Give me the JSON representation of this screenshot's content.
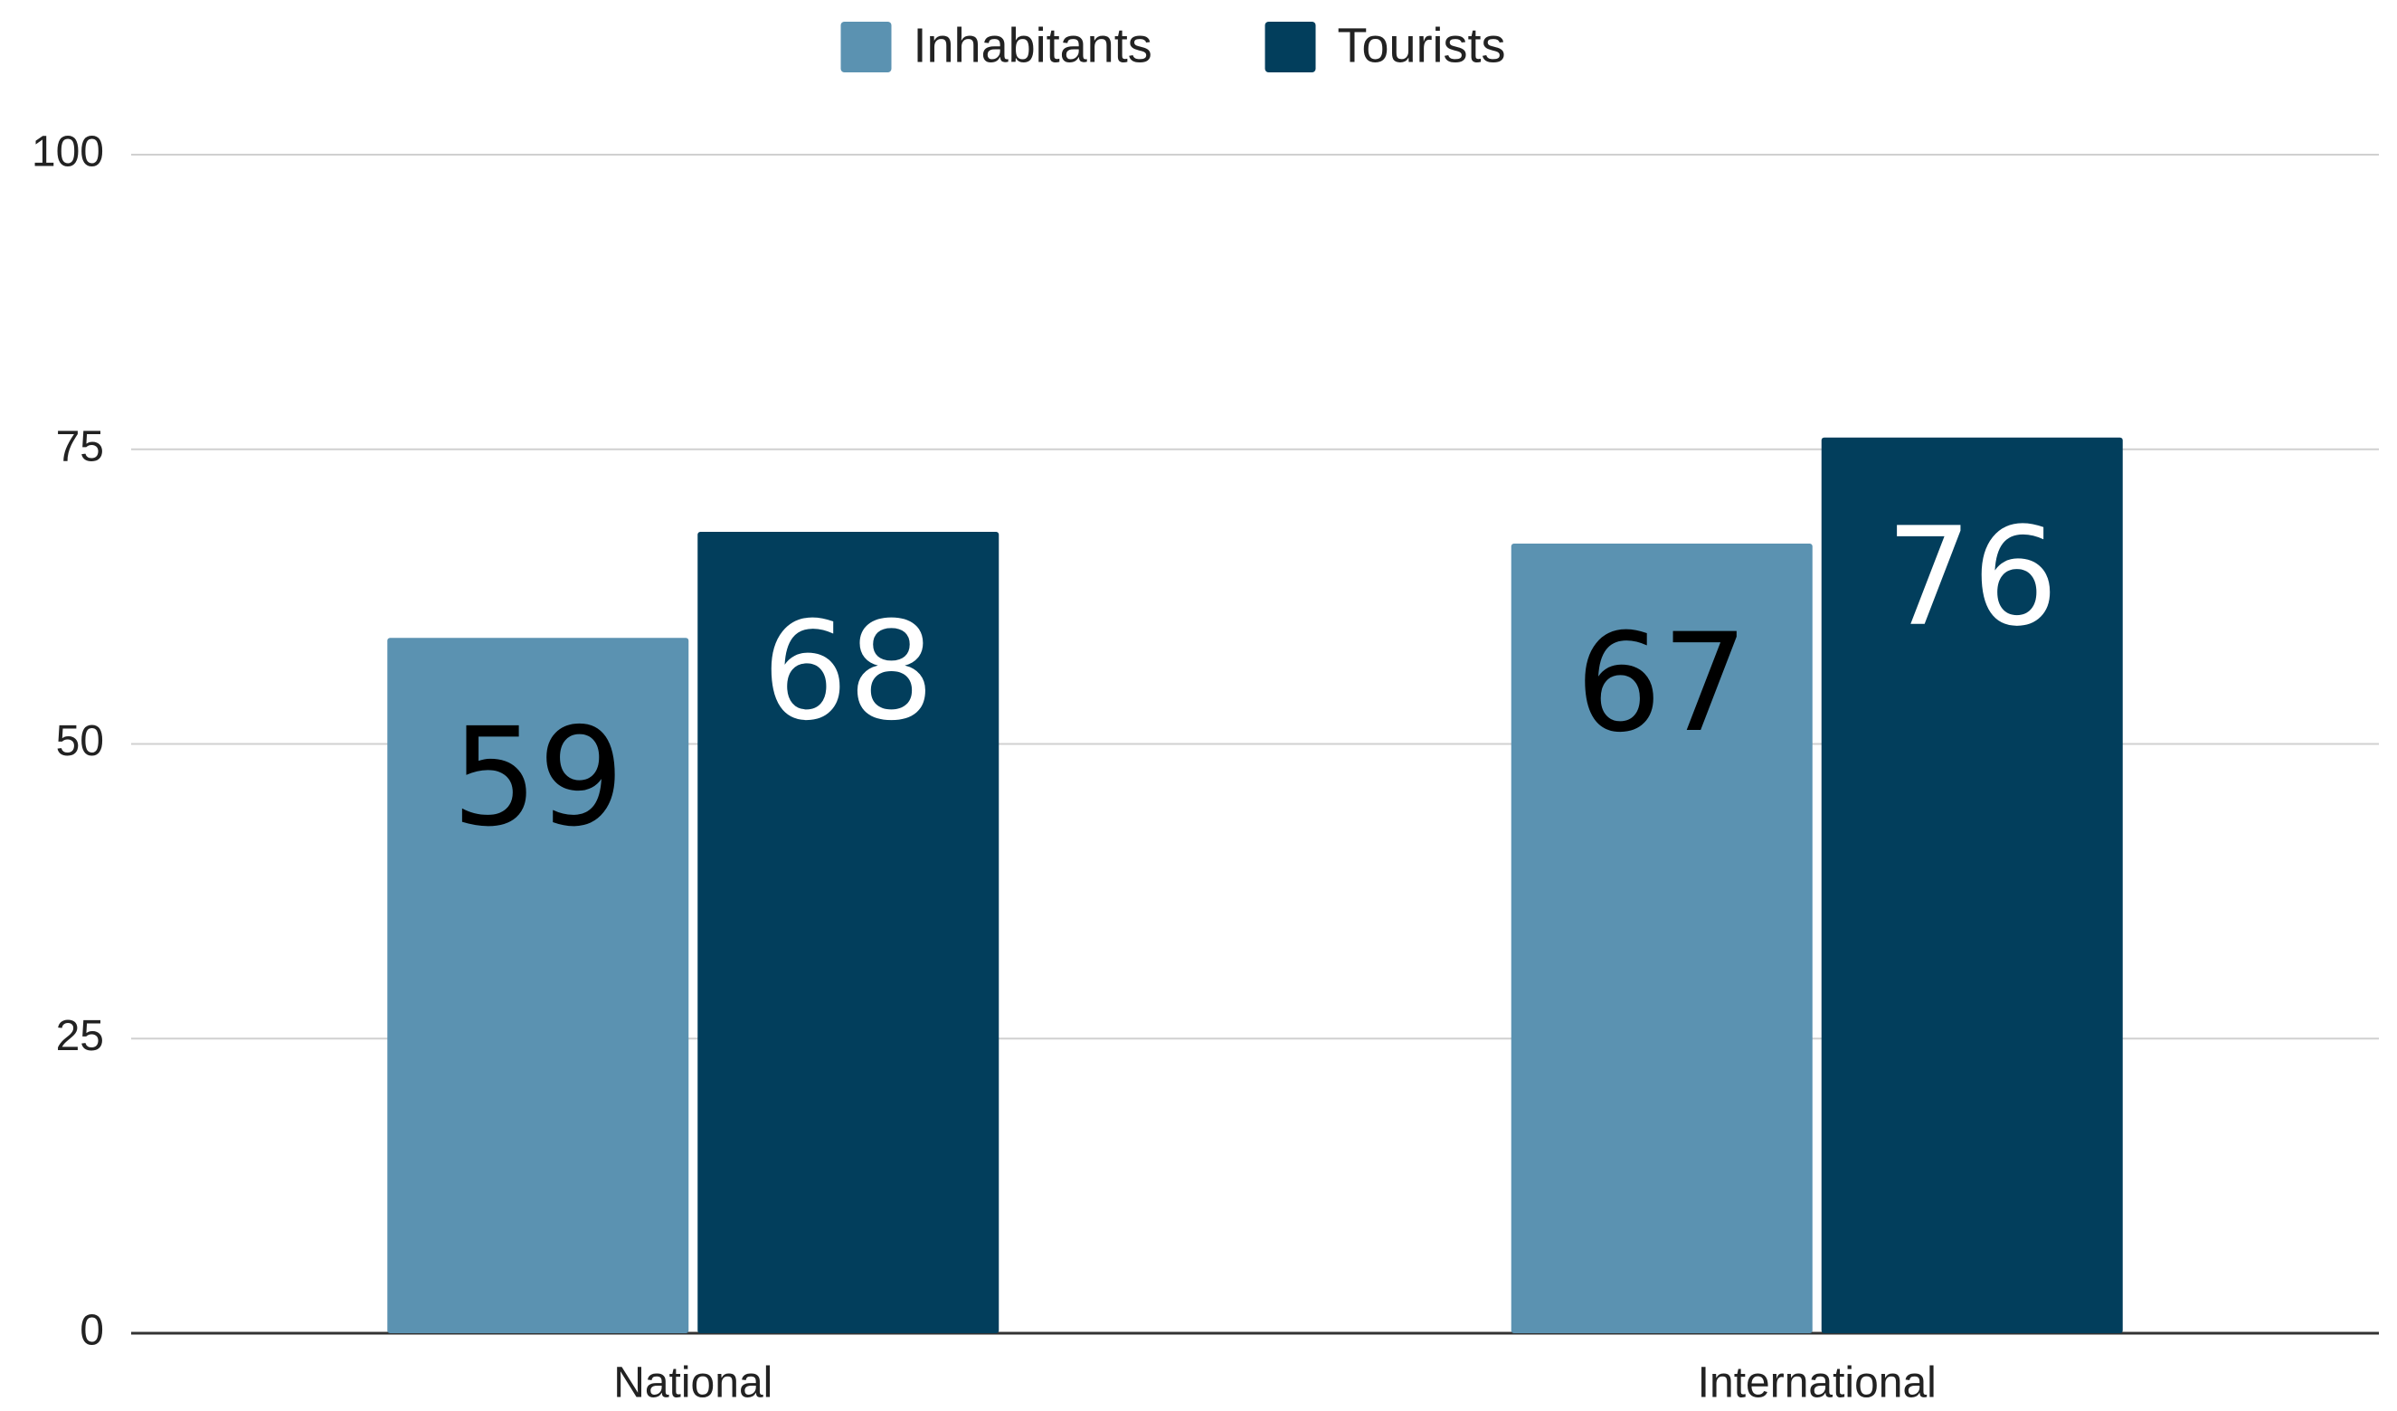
{
  "chart_data": {
    "type": "bar",
    "categories": [
      "National",
      "International"
    ],
    "series": [
      {
        "name": "Inhabitants",
        "color": "#5b92b1",
        "values": [
          59,
          67
        ]
      },
      {
        "name": "Tourists",
        "color": "#023e5c",
        "values": [
          68,
          76
        ]
      }
    ],
    "ylim": [
      0,
      100
    ],
    "yticks": [
      0,
      25,
      50,
      75,
      100
    ],
    "grid": true,
    "legend": "top"
  }
}
